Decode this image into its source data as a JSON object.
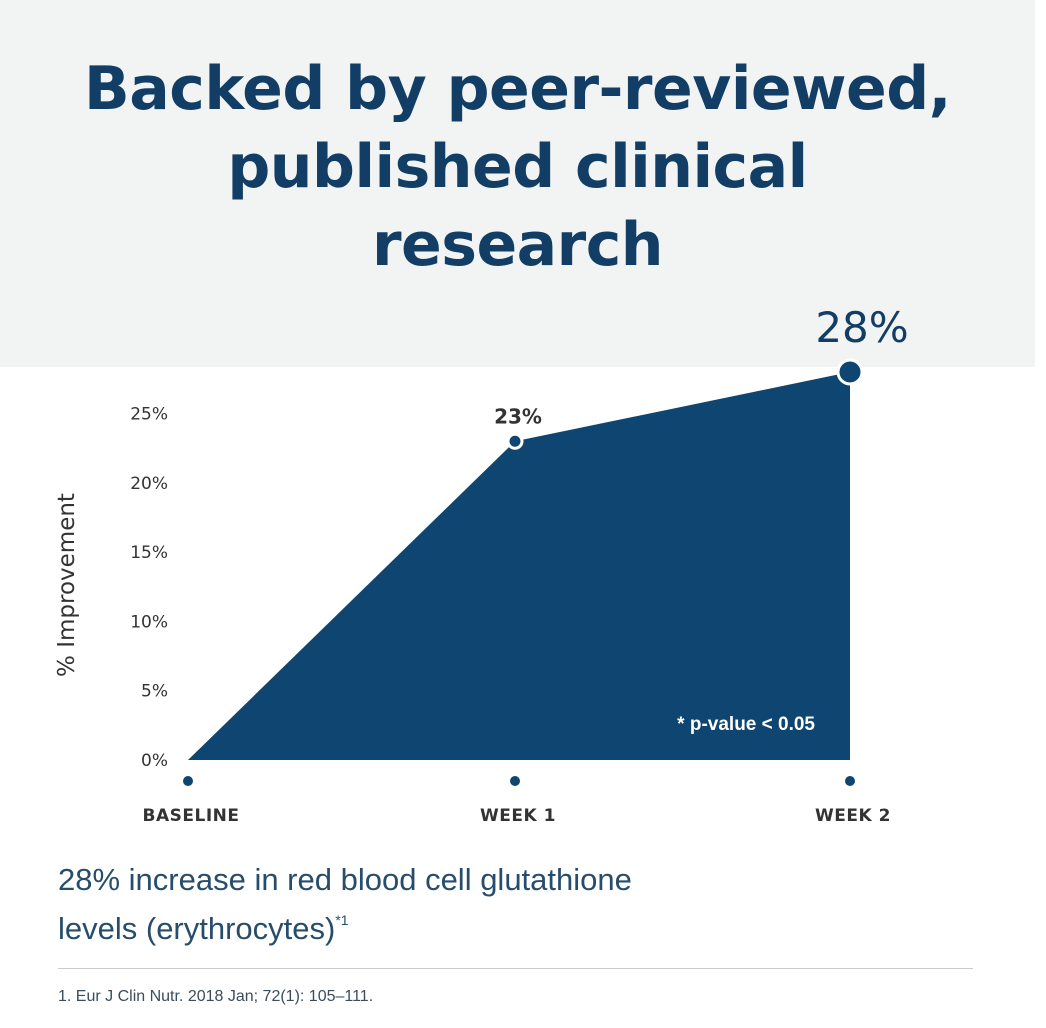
{
  "headline": [
    "Backed by peer-reviewed,",
    "published clinical",
    "research"
  ],
  "chart_data": {
    "type": "area",
    "categories": [
      "BASELINE",
      "WEEK 1",
      "WEEK 2"
    ],
    "series": [
      {
        "values": [
          0,
          23,
          28
        ]
      }
    ],
    "data_labels": [
      "23%",
      "28%"
    ],
    "ylabel": "% Improvement",
    "yticks": [
      0,
      5,
      10,
      15,
      20,
      25
    ],
    "ytick_labels": [
      "0%",
      "5%",
      "10%",
      "15%",
      "20%",
      "25%"
    ],
    "ylim": [
      0,
      28
    ],
    "annotation": "* p-value < 0.05",
    "grid": false,
    "legend": "none"
  },
  "caption": {
    "lines": [
      "28% increase in red blood cell glutathione",
      "levels (erythrocytes)"
    ],
    "reference_mark": "*1"
  },
  "footnote": "1. Eur J Clin Nutr. 2018 Jan; 72(1): 105–111.",
  "colors": {
    "navy": "#0f4571",
    "headline": "#123e66",
    "header_background": "#f2f4f3",
    "text_gray": "#333333",
    "white": "#ffffff"
  }
}
